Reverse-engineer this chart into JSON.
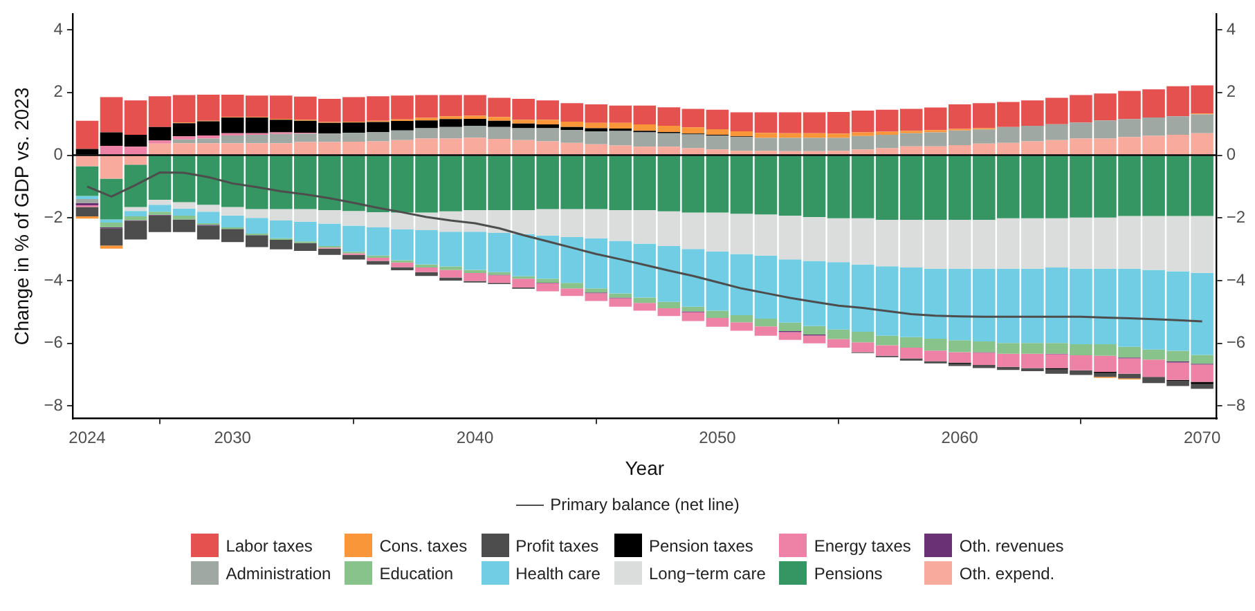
{
  "chart_data": {
    "type": "bar",
    "stacked": true,
    "xlabel": "Year",
    "ylabel": "Change in % of GDP vs. 2023",
    "x": [
      2024,
      2025,
      2026,
      2027,
      2028,
      2029,
      2030,
      2031,
      2032,
      2033,
      2034,
      2035,
      2036,
      2037,
      2038,
      2039,
      2040,
      2041,
      2042,
      2043,
      2044,
      2045,
      2046,
      2047,
      2048,
      2049,
      2050,
      2051,
      2052,
      2053,
      2054,
      2055,
      2056,
      2057,
      2058,
      2059,
      2060,
      2061,
      2062,
      2063,
      2064,
      2065,
      2066,
      2067,
      2068,
      2069,
      2070
    ],
    "xlim": [
      2023.4,
      2070.6
    ],
    "xticks": [
      2024,
      2030,
      2040,
      2050,
      2060,
      2070
    ],
    "ylim": [
      -8.4,
      4.5
    ],
    "yticks": [
      {
        "value": -8,
        "label": "−8"
      },
      {
        "value": -6,
        "label": "−6"
      },
      {
        "value": -4,
        "label": "−4"
      },
      {
        "value": -2,
        "label": "−2"
      },
      0,
      2,
      4
    ],
    "y2lim": [
      -8.4,
      4.5
    ],
    "y2ticks": [
      {
        "value": -8,
        "label": "−8"
      },
      {
        "value": -6,
        "label": "−6"
      },
      {
        "value": -4,
        "label": "−4"
      },
      {
        "value": -2,
        "label": "−2"
      },
      0,
      2,
      4
    ],
    "grid": false,
    "legend": "bottom",
    "ref_lines": [
      {
        "axis": "y",
        "value": 0,
        "color": "#000000"
      }
    ],
    "series": [
      {
        "name": "Oth. expend.",
        "color": "#f8ab9d",
        "values": [
          -0.35,
          -0.75,
          -0.3,
          0.37,
          0.38,
          0.38,
          0.38,
          0.38,
          0.38,
          0.42,
          0.42,
          0.43,
          0.44,
          0.48,
          0.53,
          0.53,
          0.56,
          0.52,
          0.48,
          0.44,
          0.39,
          0.35,
          0.31,
          0.27,
          0.27,
          0.22,
          0.18,
          0.14,
          0.14,
          0.13,
          0.13,
          0.14,
          0.18,
          0.22,
          0.28,
          0.28,
          0.32,
          0.37,
          0.39,
          0.44,
          0.48,
          0.53,
          0.53,
          0.58,
          0.62,
          0.65,
          0.7
        ]
      },
      {
        "name": "Pensions",
        "color": "#359663",
        "values": [
          -0.95,
          -1.3,
          -1.35,
          -1.42,
          -1.5,
          -1.58,
          -1.65,
          -1.72,
          -1.72,
          -1.72,
          -1.75,
          -1.78,
          -1.82,
          -1.83,
          -1.83,
          -1.79,
          -1.75,
          -1.75,
          -1.75,
          -1.72,
          -1.72,
          -1.72,
          -1.75,
          -1.75,
          -1.79,
          -1.83,
          -1.83,
          -1.87,
          -1.89,
          -1.93,
          -1.97,
          -2.01,
          -2.01,
          -2.06,
          -2.06,
          -2.06,
          -2.06,
          -2.06,
          -2.01,
          -2.01,
          -2.01,
          -1.99,
          -1.99,
          -1.94,
          -1.94,
          -1.94,
          -1.94
        ]
      },
      {
        "name": "Long−term care",
        "color": "#dadddb",
        "values": [
          0,
          null,
          -0.13,
          -0.16,
          -0.2,
          -0.22,
          -0.27,
          -0.28,
          -0.36,
          -0.4,
          -0.43,
          -0.47,
          -0.48,
          -0.54,
          -0.56,
          -0.65,
          -0.69,
          -0.73,
          -0.77,
          -0.84,
          -0.89,
          -0.93,
          -0.98,
          -1.07,
          -1.11,
          -1.16,
          -1.24,
          -1.28,
          -1.31,
          -1.39,
          -1.4,
          -1.4,
          -1.48,
          -1.48,
          -1.52,
          -1.56,
          -1.56,
          -1.56,
          -1.61,
          -1.61,
          -1.57,
          -1.63,
          -1.63,
          -1.68,
          -1.72,
          -1.76,
          -1.81
        ]
      },
      {
        "name": "Health care",
        "color": "#70cde3",
        "values": [
          -0.1,
          -0.1,
          -0.17,
          -0.22,
          -0.23,
          -0.37,
          -0.38,
          -0.5,
          -0.57,
          -0.63,
          -0.72,
          -0.83,
          -0.9,
          -0.98,
          -1.09,
          -1.11,
          -1.22,
          -1.25,
          -1.34,
          -1.38,
          -1.46,
          -1.6,
          -1.68,
          -1.72,
          -1.78,
          -1.84,
          -1.89,
          -1.95,
          -2.01,
          -2.02,
          -2.08,
          -2.15,
          -2.14,
          -2.22,
          -2.22,
          -2.23,
          -2.28,
          -2.32,
          -2.37,
          -2.37,
          -2.41,
          -2.41,
          -2.41,
          -2.49,
          -2.54,
          -2.54,
          -2.62
        ]
      },
      {
        "name": "Education",
        "color": "#87c38a",
        "values": [
          0,
          -0.15,
          -0.12,
          -0.1,
          -0.12,
          -0.05,
          -0.05,
          -0.05,
          -0.05,
          -0.05,
          -0.05,
          -0.05,
          -0.07,
          -0.07,
          -0.1,
          -0.11,
          -0.1,
          -0.08,
          -0.08,
          -0.13,
          -0.18,
          -0.13,
          -0.13,
          -0.17,
          -0.2,
          -0.15,
          -0.23,
          -0.23,
          -0.25,
          -0.27,
          -0.27,
          -0.3,
          -0.34,
          -0.3,
          -0.34,
          -0.38,
          -0.38,
          -0.34,
          -0.34,
          -0.34,
          -0.34,
          -0.35,
          -0.37,
          -0.34,
          -0.32,
          -0.34,
          -0.28
        ]
      },
      {
        "name": "Administration",
        "color": "#a0a8a3",
        "values": [
          -0.13,
          0,
          0,
          0,
          0.12,
          0.15,
          0.25,
          0.27,
          0.3,
          0.27,
          0.27,
          0.28,
          0.3,
          0.31,
          0.33,
          0.37,
          0.38,
          0.38,
          0.38,
          0.42,
          0.41,
          0.41,
          0.46,
          0.46,
          0.43,
          0.44,
          0.45,
          0.44,
          0.41,
          0.42,
          0.42,
          0.41,
          0.43,
          0.43,
          0.42,
          0.45,
          0.47,
          0.45,
          0.51,
          0.5,
          0.51,
          0.51,
          0.58,
          0.57,
          0.58,
          0.59,
          0.6
        ]
      },
      {
        "name": "Oth. revenues",
        "color": "#6a3274",
        "values": [
          -0.07,
          -0.03,
          -0.02,
          -0.02,
          null,
          -0.02,
          0,
          0,
          0,
          0,
          0,
          0,
          0,
          0,
          0,
          0,
          0,
          -0.02,
          0,
          -0.02,
          0,
          -0.02,
          -0.02,
          0,
          0,
          -0.03,
          0,
          0,
          0,
          -0.03,
          -0.03,
          0,
          0,
          0,
          0,
          0,
          0,
          -0.02,
          0,
          0,
          -0.02,
          0,
          0,
          -0.03,
          0,
          -0.03,
          -0.03
        ]
      },
      {
        "name": "Energy taxes",
        "color": "#ee82a6",
        "values": [
          -0.05,
          0.3,
          0.27,
          0.1,
          0.1,
          0.1,
          0.07,
          0.05,
          0.05,
          0.03,
          -0.03,
          -0.05,
          -0.1,
          -0.15,
          -0.15,
          -0.24,
          -0.25,
          -0.24,
          -0.28,
          -0.25,
          -0.24,
          -0.25,
          -0.27,
          -0.25,
          -0.25,
          -0.28,
          -0.28,
          -0.27,
          -0.3,
          -0.25,
          -0.25,
          -0.28,
          -0.31,
          -0.34,
          -0.34,
          -0.34,
          -0.34,
          -0.39,
          -0.42,
          -0.46,
          -0.44,
          -0.48,
          -0.51,
          -0.49,
          -0.55,
          -0.56,
          -0.55
        ]
      },
      {
        "name": "Pension taxes",
        "color": "#000000",
        "values": [
          0.2,
          0.43,
          0.38,
          0.43,
          0.42,
          0.45,
          0.5,
          0.5,
          0.4,
          0.38,
          0.34,
          0.33,
          0.32,
          0.3,
          0.25,
          0.25,
          0.22,
          0.2,
          0.15,
          0.12,
          0.1,
          0.1,
          0.08,
          0.05,
          0.04,
          0.03,
          0.02,
          0.02,
          0,
          0,
          0,
          0,
          0,
          0,
          0,
          0,
          -0.03,
          0,
          0,
          0,
          -0.03,
          0,
          -0.04,
          0,
          0,
          -0.04,
          -0.07
        ]
      },
      {
        "name": "Profit taxes",
        "color": "#4d4d4d",
        "values": [
          -0.3,
          -0.55,
          -0.6,
          -0.53,
          -0.4,
          -0.45,
          -0.42,
          -0.38,
          -0.3,
          -0.25,
          -0.2,
          -0.15,
          -0.12,
          -0.1,
          -0.12,
          -0.1,
          -0.05,
          -0.04,
          -0.04,
          0,
          0,
          0,
          0,
          0,
          0,
          0,
          0,
          0,
          0,
          0,
          0,
          0,
          -0.03,
          -0.04,
          -0.07,
          -0.07,
          -0.07,
          -0.1,
          -0.1,
          -0.1,
          -0.15,
          -0.15,
          -0.12,
          -0.15,
          -0.2,
          -0.15,
          -0.15
        ]
      },
      {
        "name": "Cons. taxes",
        "color": "#f9963a",
        "values": [
          -0.07,
          -0.1,
          0,
          0,
          0.02,
          0.02,
          0.02,
          0.02,
          0.03,
          0.03,
          0.03,
          0.03,
          0.04,
          0.05,
          0.08,
          0.09,
          0.1,
          0.12,
          0.12,
          0.15,
          0.17,
          0.17,
          0.18,
          0.2,
          0.2,
          0.2,
          0.18,
          0.16,
          0.16,
          0.15,
          0.15,
          0.14,
          0.12,
          0.1,
          0.08,
          0.07,
          0.05,
          0.04,
          0,
          0,
          0,
          0,
          -0.03,
          -0.03,
          0,
          0,
          0.03
        ]
      },
      {
        "name": "Labor taxes",
        "color": "#e4514f",
        "values": [
          0.9,
          1.12,
          1.1,
          0.98,
          0.88,
          0.83,
          0.71,
          0.68,
          0.74,
          0.74,
          0.74,
          0.78,
          0.78,
          0.76,
          0.73,
          0.68,
          0.66,
          0.61,
          0.67,
          0.62,
          0.59,
          0.59,
          0.55,
          0.6,
          0.59,
          0.59,
          0.62,
          0.61,
          0.66,
          0.67,
          0.67,
          0.69,
          0.69,
          0.7,
          0.7,
          0.72,
          0.78,
          0.8,
          0.8,
          0.81,
          0.84,
          0.88,
          0.86,
          0.9,
          0.9,
          0.96,
          0.9
        ]
      },
      {
        "name": "Primary balance (net line)",
        "type": "line",
        "color": "#4d4d4d",
        "values": [
          -1.0,
          -1.32,
          -0.95,
          -0.55,
          -0.56,
          -0.7,
          -0.9,
          -1.02,
          -1.15,
          -1.25,
          -1.37,
          -1.52,
          -1.68,
          -1.82,
          -1.97,
          -2.08,
          -2.17,
          -2.33,
          -2.55,
          -2.75,
          -2.95,
          -3.15,
          -3.32,
          -3.5,
          -3.68,
          -3.85,
          -4.05,
          -4.25,
          -4.4,
          -4.55,
          -4.68,
          -4.8,
          -4.87,
          -4.97,
          -5.07,
          -5.12,
          -5.14,
          -5.15,
          -5.15,
          -5.15,
          -5.15,
          -5.15,
          -5.18,
          -5.2,
          -5.23,
          -5.26,
          -5.3
        ]
      }
    ]
  }
}
